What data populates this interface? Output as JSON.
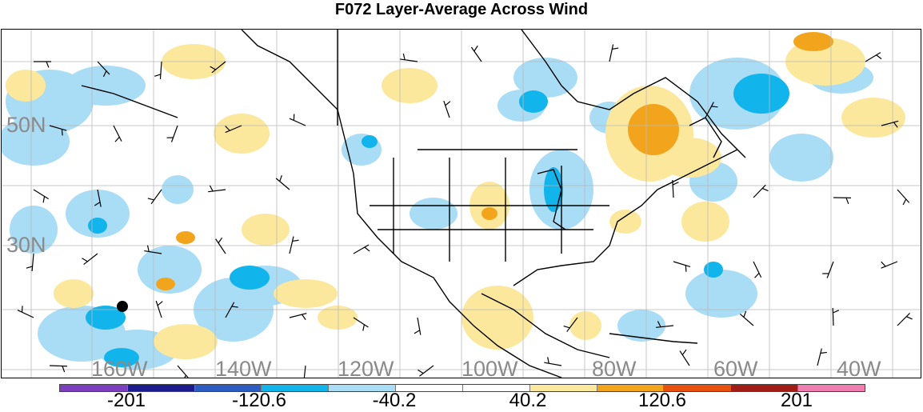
{
  "title": "F072 Layer-Average Across Wind",
  "map": {
    "lat_labels": [
      "50N",
      "30N"
    ],
    "lon_labels": [
      "160W",
      "140W",
      "120W",
      "100W",
      "80W",
      "60W",
      "40W"
    ],
    "marker": "station-dot"
  },
  "legend": {
    "colors": [
      "#7b3fc0",
      "#1c1c8c",
      "#2c5cc4",
      "#12b4ec",
      "#a9dcf5",
      "#ffffff",
      "#ffffff",
      "#fce89c",
      "#f2a51c",
      "#e8500c",
      "#a01c14",
      "#f07eb0"
    ],
    "labels": [
      "-201",
      "-120.6",
      "-40.2",
      "40.2",
      "120.6",
      "201"
    ]
  }
}
